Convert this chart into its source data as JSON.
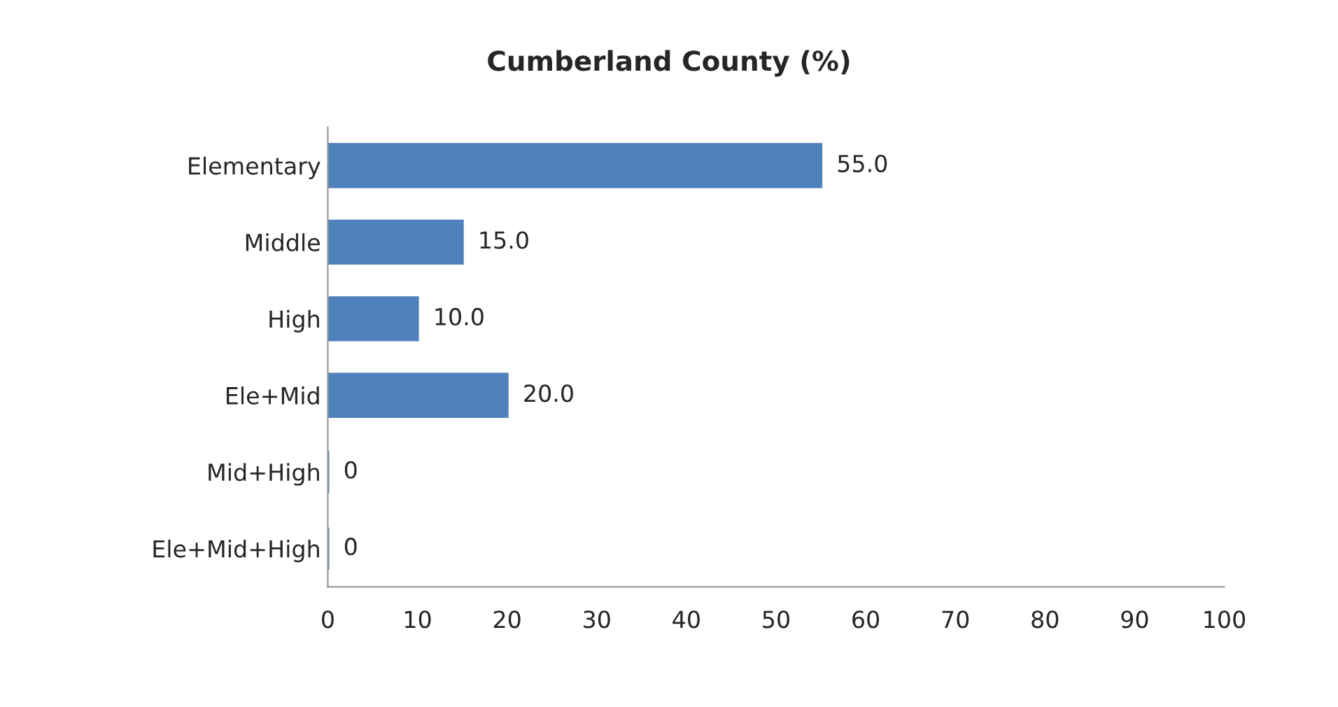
{
  "chart_data": {
    "type": "bar",
    "orientation": "horizontal",
    "title": "Cumberland County (%)",
    "categories": [
      "Elementary",
      "Middle",
      "High",
      "Ele+Mid",
      "Mid+High",
      "Ele+Mid+High"
    ],
    "values": [
      55,
      15,
      10,
      20,
      0,
      0
    ],
    "value_labels": [
      "55.0",
      "15.0",
      "10.0",
      "20.0",
      "0",
      "0"
    ],
    "color": "#4f81bd",
    "xlim": [
      0,
      100
    ],
    "xticks": [
      0,
      10,
      20,
      30,
      40,
      50,
      60,
      70,
      80,
      90,
      100
    ],
    "grid": false
  }
}
